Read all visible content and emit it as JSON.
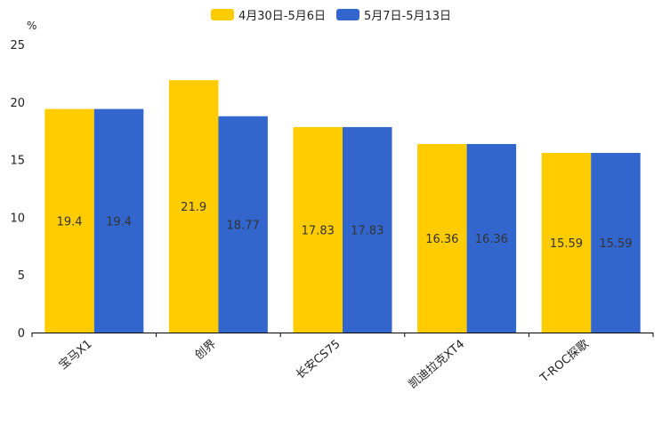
{
  "chart_data": {
    "type": "bar",
    "title": "",
    "unit_label": "%",
    "xlabel": "",
    "ylabel": "%",
    "ylim": [
      0,
      25
    ],
    "yticks": [
      0,
      5,
      10,
      15,
      20,
      25
    ],
    "grid": false,
    "legend_position": "top-center",
    "categories": [
      "宝马X1",
      "创界",
      "长安CS75",
      "凯迪拉克XT4",
      "T-ROC探歌"
    ],
    "series": [
      {
        "name": "4月30日-5月6日",
        "color": "#FFCC00",
        "values": [
          19.4,
          21.9,
          17.83,
          16.36,
          15.59
        ]
      },
      {
        "name": "5月7日-5月13日",
        "color": "#3366CC",
        "values": [
          19.4,
          18.77,
          17.83,
          16.36,
          15.59
        ]
      }
    ]
  }
}
